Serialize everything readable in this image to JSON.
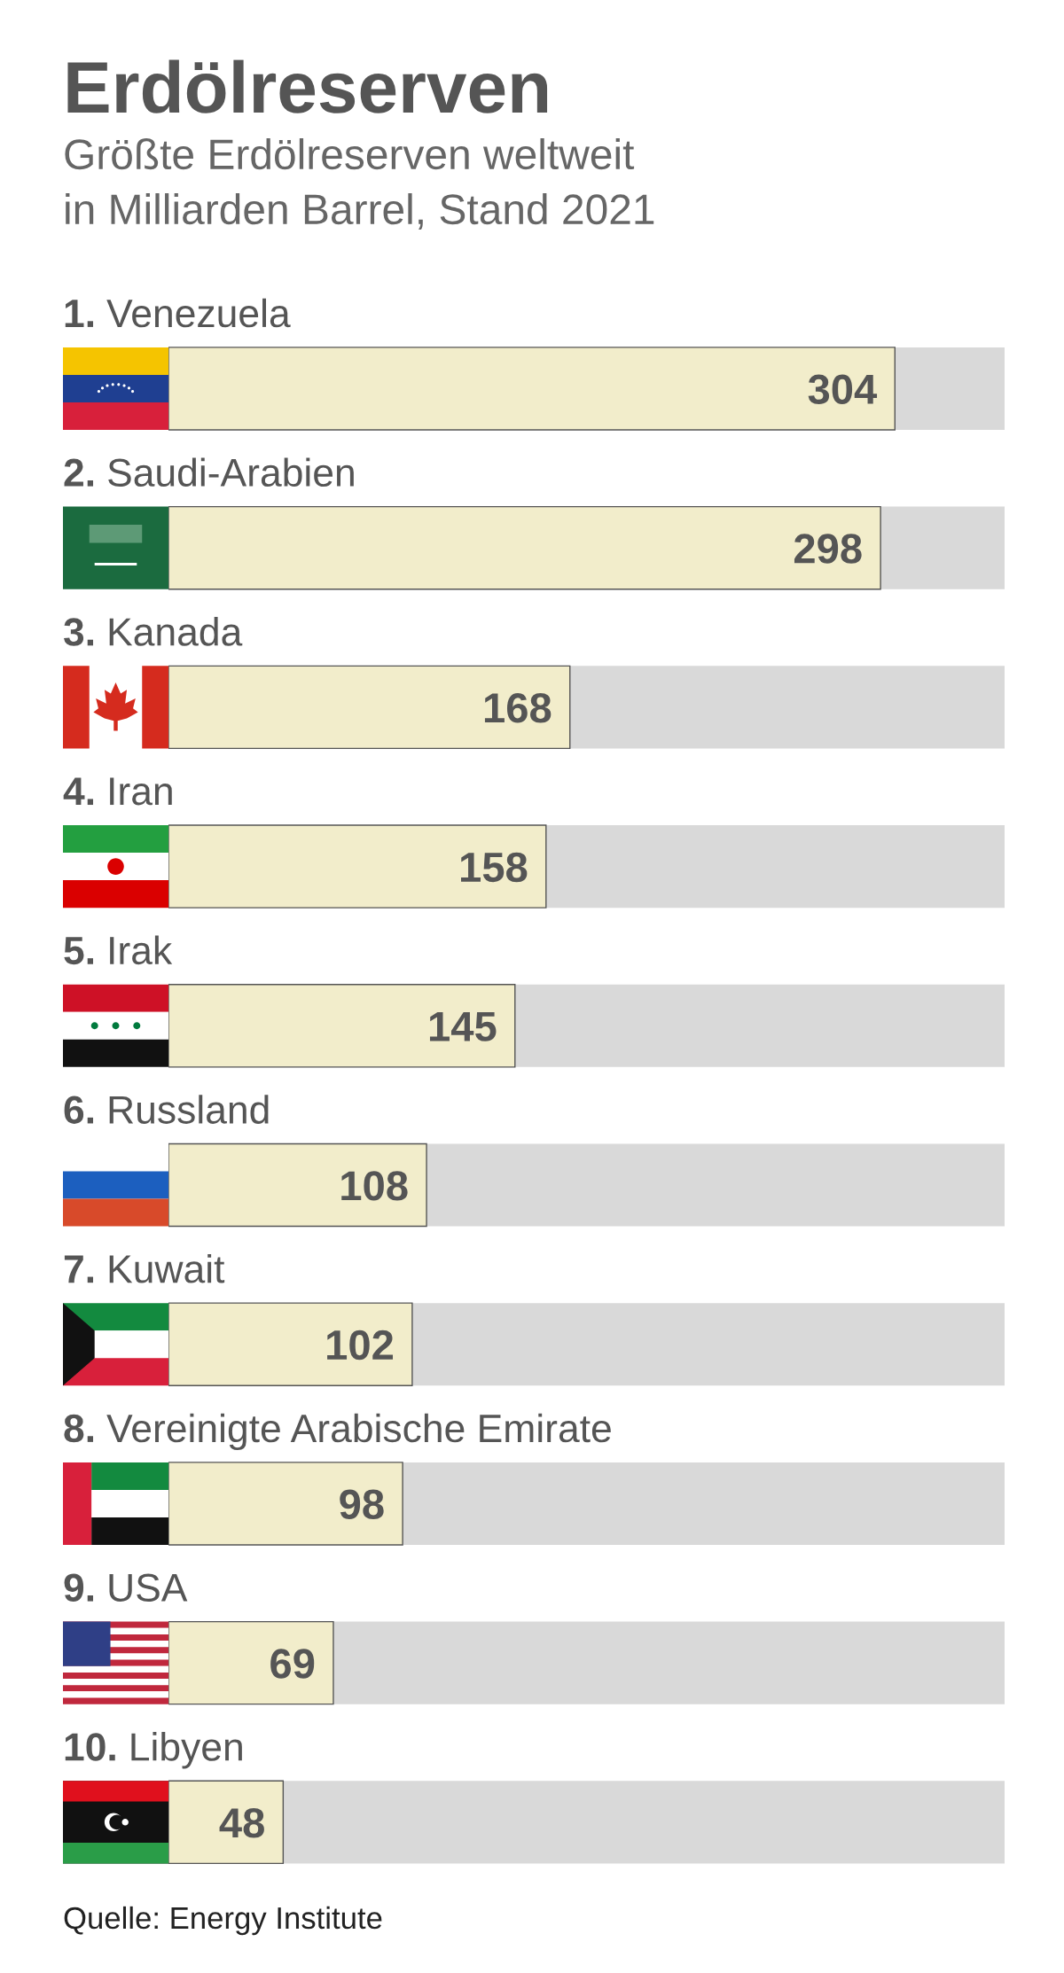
{
  "chart_data": {
    "type": "bar",
    "orientation": "horizontal",
    "title": "Erdölreserven",
    "subtitle": "Größte Erdölreserven weltweit\nin Milliarden Barrel, Stand 2021",
    "categories": [
      "1. Venezuela",
      "2. Saudi-Arabien",
      "3. Kanada",
      "4. Iran",
      "5. Irak",
      "6. Russland",
      "7. Kuwait",
      "8. Vereinigte Arabische Emirate",
      "9. USA",
      "10. Libyen"
    ],
    "values": [
      304,
      298,
      168,
      158,
      145,
      108,
      102,
      98,
      69,
      48
    ],
    "color": "#f2edcb",
    "data_labels": true,
    "annotations": [
      "Quelle: Energy Institute"
    ]
  }
}
